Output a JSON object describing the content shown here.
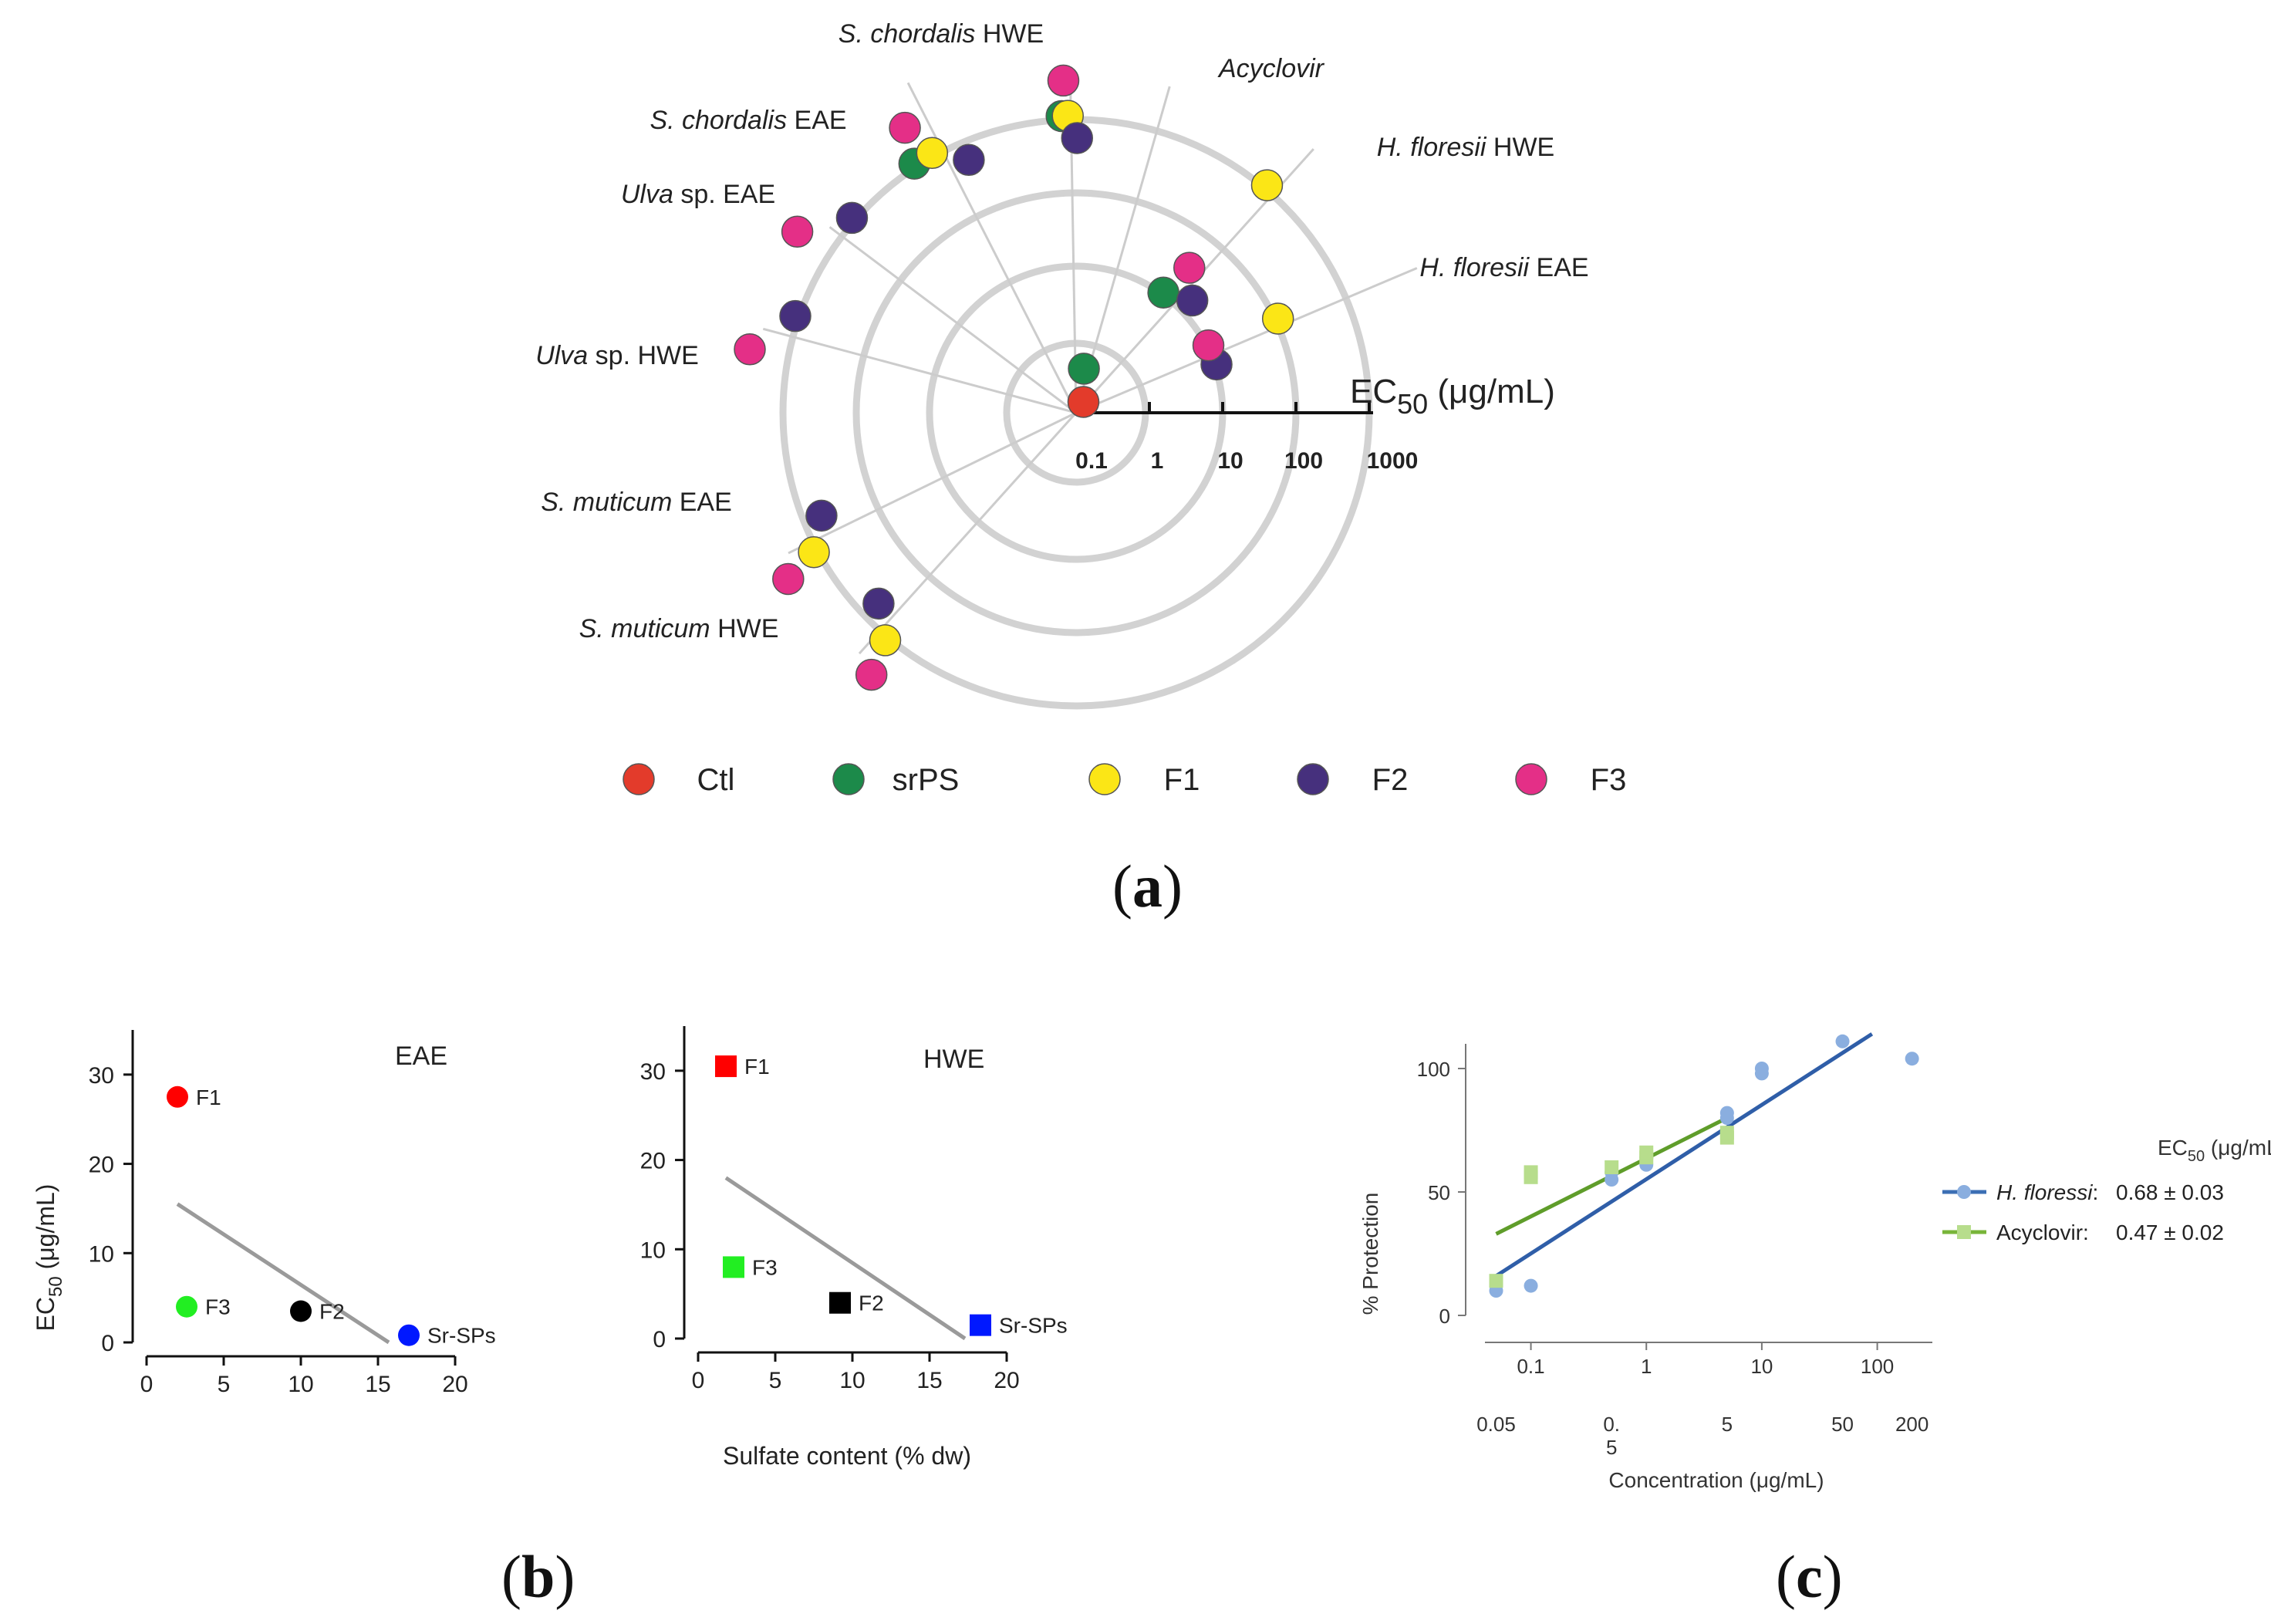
{
  "panels": {
    "a": {
      "label": "a",
      "axis_title": "EC",
      "axis_title_sub": "50",
      "axis_title_unit": " (μg/mL)",
      "ticks": [
        "0.1",
        "1",
        "10",
        "100",
        "1000"
      ],
      "categories": [
        {
          "italic": "S. chordalis",
          "rest": " HWE"
        },
        {
          "italic": "Acyclovir",
          "rest": ""
        },
        {
          "italic": "H. floresii",
          "rest": " HWE"
        },
        {
          "italic": "H. floresii",
          "rest": " EAE"
        },
        {
          "italic": "S. chordalis",
          "rest": " EAE"
        },
        {
          "italic": "Ulva",
          "rest": " sp. EAE"
        },
        {
          "italic": "Ulva",
          "rest": " sp. HWE"
        },
        {
          "italic": "S. muticum",
          "rest": " EAE"
        },
        {
          "italic": "S. muticum",
          "rest": " HWE"
        }
      ],
      "legend": [
        {
          "key": "ctl",
          "label": "Ctl",
          "color": "#e33b2b"
        },
        {
          "key": "srps",
          "label": "srPS",
          "color": "#1c8a4a"
        },
        {
          "key": "f1",
          "label": "F1",
          "color": "#fbe616"
        },
        {
          "key": "f2",
          "label": "F2",
          "color": "#46307d"
        },
        {
          "key": "f3",
          "label": "F3",
          "color": "#e42f87"
        }
      ]
    },
    "b": {
      "label": "b",
      "eae_title": "EAE",
      "hwe_title": "HWE",
      "ylabel": "EC",
      "ylabel_sub": "50",
      "ylabel_unit": " (μg/mL)",
      "xlabel": "Sulfate content (% dw)",
      "y_ticks": [
        "0",
        "10",
        "20",
        "30"
      ],
      "x_ticks": [
        "0",
        "5",
        "10",
        "15",
        "20"
      ]
    },
    "c": {
      "label": "c",
      "ylabel": "% Protection",
      "xlabel": "Concentration (μg/mL)",
      "y_ticks": [
        "0",
        "50",
        "100"
      ],
      "x_ticks_top": [
        "0.1",
        "1",
        "10",
        "100"
      ],
      "x_ticks_bottom": [
        "0.05",
        "0.",
        "5",
        "5",
        "50",
        "200"
      ],
      "x_tick_bottom_extra": "5",
      "legend_title": "EC",
      "legend_title_sub": "50",
      "legend_title_unit": " (μg/mL)",
      "legend": [
        {
          "italic": "H. floressi",
          "rest": ":",
          "value": "0.68 ± 0.03",
          "color": "#3c6fb4"
        },
        {
          "italic": "",
          "rest": "Acyclovir:",
          "value": "0.47 ± 0.02",
          "color": "#78b53a"
        }
      ]
    }
  },
  "chart_data": [
    {
      "type": "scatter",
      "subtype": "radial",
      "title": "",
      "radial_axis": "EC50 (μg/mL)",
      "radial_scale": "log",
      "radial_range": [
        0.1,
        1000
      ],
      "categories": [
        "S. chordalis HWE",
        "Acyclovir",
        "H. floresii HWE",
        "H. floresii EAE",
        "S. chordalis EAE",
        "Ulva sp. EAE",
        "Ulva sp. HWE",
        "S. muticum EAE",
        "S. muticum HWE"
      ],
      "series": [
        {
          "name": "Ctl",
          "color": "#e33b2b",
          "values": [
            null,
            0.15,
            null,
            null,
            null,
            null,
            null,
            null,
            null
          ]
        },
        {
          "name": "srPS",
          "color": "#1c8a4a",
          "values": [
            1000,
            0.4,
            10,
            null,
            1000,
            null,
            null,
            null,
            null
          ]
        },
        {
          "name": "F1",
          "color": "#fbe616",
          "values": [
            1000,
            null,
            1000,
            100,
            1000,
            null,
            null,
            1000,
            1000
          ]
        },
        {
          "name": "F2",
          "color": "#46307d",
          "values": [
            500,
            null,
            15,
            10,
            500,
            1000,
            1000,
            500,
            500
          ]
        },
        {
          "name": "F3",
          "color": "#e42f87",
          "values": [
            3000,
            null,
            30,
            10,
            3000,
            3000,
            3000,
            3000,
            3000
          ]
        }
      ]
    },
    {
      "type": "scatter",
      "title": "EAE",
      "xlabel": "Sulfate content (% dw)",
      "ylabel": "EC50 (μg/mL)",
      "xlim": [
        0,
        20
      ],
      "ylim": [
        0,
        35
      ],
      "points": [
        {
          "label": "F1",
          "x": 2.0,
          "y": 27.5,
          "color": "#ff0000"
        },
        {
          "label": "F3",
          "x": 2.6,
          "y": 4.0,
          "color": "#22ee22"
        },
        {
          "label": "F2",
          "x": 10.0,
          "y": 3.5,
          "color": "#000000"
        },
        {
          "label": "Sr-SPs",
          "x": 17.0,
          "y": 0.8,
          "color": "#0018ff"
        }
      ],
      "trend": {
        "x": [
          2.0,
          15.7
        ],
        "y": [
          15.5,
          0.0
        ]
      }
    },
    {
      "type": "scatter",
      "title": "HWE",
      "xlabel": "Sulfate content (% dw)",
      "ylabel": "EC50 (μg/mL)",
      "xlim": [
        0,
        20
      ],
      "ylim": [
        0,
        35
      ],
      "points": [
        {
          "label": "F1",
          "x": 1.8,
          "y": 30.5,
          "color": "#ff0000"
        },
        {
          "label": "F3",
          "x": 2.3,
          "y": 8.0,
          "color": "#22ee22"
        },
        {
          "label": "F2",
          "x": 9.2,
          "y": 4.0,
          "color": "#000000"
        },
        {
          "label": "Sr-SPs",
          "x": 18.3,
          "y": 1.5,
          "color": "#0018ff"
        }
      ],
      "trend": {
        "x": [
          1.8,
          17.3
        ],
        "y": [
          18.0,
          0.0
        ]
      }
    },
    {
      "type": "scatter",
      "title": "",
      "xlabel": "Concentration (μg/mL)",
      "ylabel": "% Protection",
      "x_scale": "log",
      "xlim": [
        0.04,
        300
      ],
      "ylim": [
        -5,
        115
      ],
      "series": [
        {
          "name": "H. floressi",
          "color": "#8aaedf",
          "marker": "circle",
          "points": [
            [
              0.05,
              10
            ],
            [
              0.1,
              12
            ],
            [
              0.5,
              55
            ],
            [
              0.5,
              58
            ],
            [
              1,
              61
            ],
            [
              1,
              64
            ],
            [
              5,
              80
            ],
            [
              5,
              82
            ],
            [
              10,
              98
            ],
            [
              10,
              100
            ],
            [
              50,
              111
            ],
            [
              200,
              104
            ]
          ],
          "fit": {
            "x": [
              0.05,
              90
            ],
            "y": [
              16,
              114
            ]
          }
        },
        {
          "name": "Acyclovir",
          "color": "#b7dd8c",
          "marker": "square",
          "points": [
            [
              0.05,
              14
            ],
            [
              0.1,
              56
            ],
            [
              0.1,
              58
            ],
            [
              0.5,
              60
            ],
            [
              1,
              64
            ],
            [
              1,
              66
            ],
            [
              5,
              72
            ],
            [
              5,
              74
            ]
          ],
          "fit": {
            "x": [
              0.05,
              5
            ],
            "y": [
              33,
              80
            ]
          }
        }
      ],
      "fit_colors": {
        "H. floressi": "#2f5ea8",
        "Acyclovir": "#5f9d2a"
      }
    }
  ]
}
